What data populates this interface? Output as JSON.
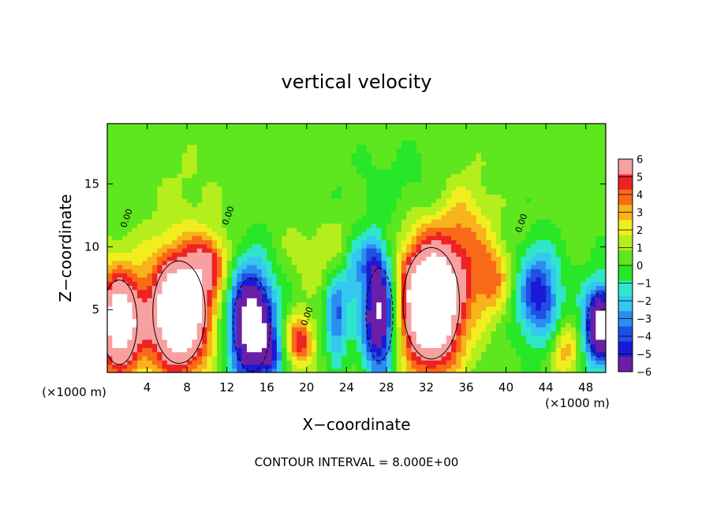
{
  "chart_data": {
    "type": "heatmap",
    "title": "vertical velocity",
    "xlabel": "X−coordinate",
    "ylabel": "Z−coordinate",
    "x_unit": "(×1000 m)",
    "y_unit": "(×1000 m)",
    "footer": "CONTOUR INTERVAL = 8.000E+00",
    "xlim": [
      0,
      50
    ],
    "ylim": [
      0,
      19.8
    ],
    "xticks": [
      4,
      8,
      12,
      16,
      20,
      24,
      28,
      32,
      36,
      40,
      44,
      48
    ],
    "yticks": [
      5,
      10,
      15
    ],
    "colorbar": {
      "min": -6,
      "max": 6,
      "ticks": [
        6,
        5,
        4,
        3,
        2,
        1,
        0,
        -1,
        -2,
        -3,
        -4,
        -5,
        -6
      ],
      "colors": [
        "#6a1fa6",
        "#1a1ad6",
        "#1f4fe6",
        "#2a8ef0",
        "#34c8f0",
        "#30e6c8",
        "#28e628",
        "#5ee61e",
        "#b4ee1c",
        "#f0ee1e",
        "#f8b21c",
        "#f86a18",
        "#ee2222",
        "#f8a0a0"
      ]
    },
    "background_value": 0.4,
    "contour_labels": [
      {
        "text": "0.00",
        "x": 2.2,
        "z": 12.2
      },
      {
        "text": "0.00",
        "x": 12.4,
        "z": 12.4
      },
      {
        "text": "0.00",
        "x": 41.8,
        "z": 11.8
      },
      {
        "text": "0.00",
        "x": 20.3,
        "z": 4.4
      }
    ],
    "features": [
      {
        "x": 1.2,
        "z": 4.0,
        "sx": 1.6,
        "sz": 3.0,
        "amp": 9
      },
      {
        "x": 7.2,
        "z": 4.8,
        "sx": 2.2,
        "sz": 3.4,
        "amp": 11
      },
      {
        "x": 10.2,
        "z": 8.8,
        "sx": 1.3,
        "sz": 1.6,
        "amp": 4
      },
      {
        "x": 14.5,
        "z": 3.8,
        "sx": 1.6,
        "sz": 3.2,
        "amp": -10
      },
      {
        "x": 19.3,
        "z": 2.5,
        "sx": 1.0,
        "sz": 1.4,
        "amp": 5
      },
      {
        "x": 23.0,
        "z": 4.5,
        "sx": 0.8,
        "sz": 2.4,
        "amp": -4.5
      },
      {
        "x": 24.7,
        "z": 8.2,
        "sx": 0.7,
        "sz": 1.8,
        "amp": -3
      },
      {
        "x": 27.3,
        "z": 4.6,
        "sx": 1.2,
        "sz": 3.3,
        "amp": -9
      },
      {
        "x": 26.5,
        "z": 9.0,
        "sx": 0.8,
        "sz": 1.5,
        "amp": -3
      },
      {
        "x": 32.5,
        "z": 5.5,
        "sx": 2.3,
        "sz": 3.6,
        "amp": 12
      },
      {
        "x": 36.0,
        "z": 11.5,
        "sx": 1.8,
        "sz": 3.0,
        "amp": 2.5
      },
      {
        "x": 38.5,
        "z": 7.5,
        "sx": 1.3,
        "sz": 2.0,
        "amp": 3.5
      },
      {
        "x": 43.3,
        "z": 6.2,
        "sx": 1.5,
        "sz": 2.6,
        "amp": -5.5
      },
      {
        "x": 46.0,
        "z": 1.8,
        "sx": 1.0,
        "sz": 1.5,
        "amp": 3
      },
      {
        "x": 49.5,
        "z": 3.8,
        "sx": 1.2,
        "sz": 2.3,
        "amp": -9
      },
      {
        "x": 16.5,
        "z": 1.2,
        "sx": 0.8,
        "sz": 1.3,
        "amp": -3
      },
      {
        "x": 22.0,
        "z": 9.5,
        "sx": 3.0,
        "sz": 2.0,
        "amp": 1.2
      },
      {
        "x": 30.0,
        "z": 14.5,
        "sx": 4.0,
        "sz": 2.5,
        "amp": -0.8
      },
      {
        "x": 8.0,
        "z": 15.0,
        "sx": 3.0,
        "sz": 2.5,
        "amp": 0.5
      }
    ]
  }
}
